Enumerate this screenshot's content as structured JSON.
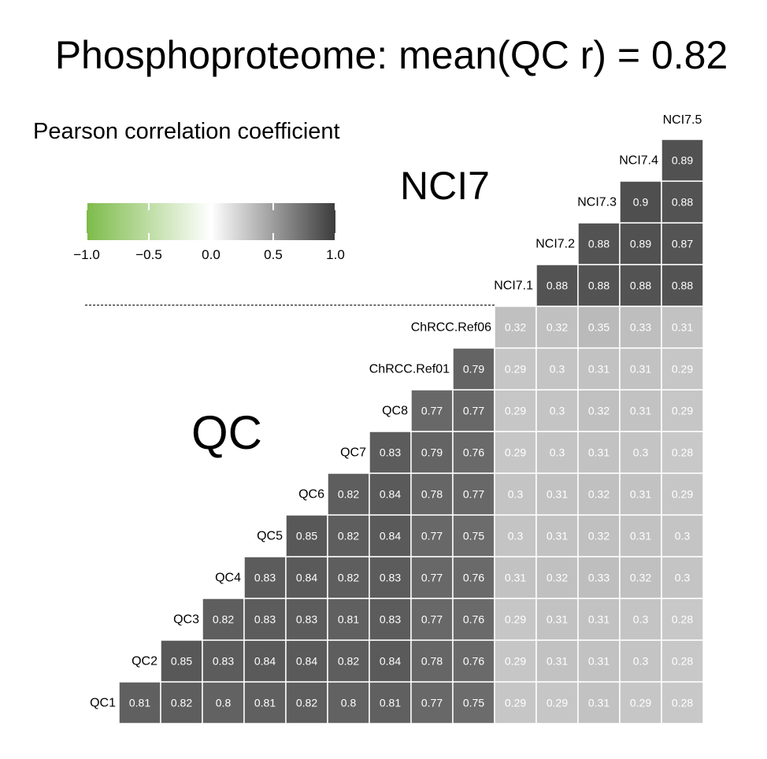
{
  "title": "Phosphoproteome: mean(QC r) = 0.82",
  "legend": {
    "title": "Pearson correlation coefficient",
    "ticks": [
      "−1.0",
      "−0.5",
      "0.0",
      "0.5",
      "1.0"
    ],
    "tick_values": [
      -1.0,
      -0.5,
      0.0,
      0.5,
      1.0
    ],
    "colors": {
      "low": "#7dbb4a",
      "mid": "#ffffff",
      "high": "#3b3b3c"
    }
  },
  "group_labels": {
    "nci7": "NCI7",
    "qc": "QC"
  },
  "chart_data": {
    "type": "heatmap",
    "title": "Phosphoproteome: mean(QC r) = 0.82",
    "row_labels": [
      "QC1",
      "QC2",
      "QC3",
      "QC4",
      "QC5",
      "QC6",
      "QC7",
      "QC8",
      "ChRCC.Ref01",
      "ChRCC.Ref06",
      "NCI7.1",
      "NCI7.2",
      "NCI7.3",
      "NCI7.4",
      "NCI7.5"
    ],
    "column_labels": [
      "QC1",
      "QC2",
      "QC3",
      "QC4",
      "QC5",
      "QC6",
      "QC7",
      "QC8",
      "ChRCC.Ref01",
      "ChRCC.Ref06",
      "NCI7.1",
      "NCI7.2",
      "NCI7.3",
      "NCI7.4",
      "NCI7.5"
    ],
    "cells": [
      [
        "0.81",
        "0.82",
        "0.8",
        "0.81",
        "0.82",
        "0.8",
        "0.81",
        "0.77",
        "0.75",
        "0.29",
        "0.29",
        "0.31",
        "0.29",
        "0.28"
      ],
      [
        "0.85",
        "0.83",
        "0.84",
        "0.84",
        "0.82",
        "0.84",
        "0.78",
        "0.76",
        "0.29",
        "0.31",
        "0.31",
        "0.3",
        "0.28"
      ],
      [
        "0.82",
        "0.83",
        "0.83",
        "0.81",
        "0.83",
        "0.77",
        "0.76",
        "0.29",
        "0.31",
        "0.31",
        "0.3",
        "0.28"
      ],
      [
        "0.83",
        "0.84",
        "0.82",
        "0.83",
        "0.77",
        "0.76",
        "0.31",
        "0.32",
        "0.33",
        "0.32",
        "0.3"
      ],
      [
        "0.85",
        "0.82",
        "0.84",
        "0.77",
        "0.75",
        "0.3",
        "0.31",
        "0.32",
        "0.31",
        "0.3"
      ],
      [
        "0.82",
        "0.84",
        "0.78",
        "0.77",
        "0.3",
        "0.31",
        "0.32",
        "0.31",
        "0.29"
      ],
      [
        "0.83",
        "0.79",
        "0.76",
        "0.29",
        "0.3",
        "0.31",
        "0.3",
        "0.28"
      ],
      [
        "0.77",
        "0.77",
        "0.29",
        "0.3",
        "0.32",
        "0.31",
        "0.29"
      ],
      [
        "0.79",
        "0.29",
        "0.3",
        "0.31",
        "0.31",
        "0.29"
      ],
      [
        "0.32",
        "0.32",
        "0.35",
        "0.33",
        "0.31"
      ],
      [
        "0.88",
        "0.88",
        "0.88",
        "0.88"
      ],
      [
        "0.88",
        "0.89",
        "0.87"
      ],
      [
        "0.9",
        "0.88"
      ],
      [
        "0.89"
      ]
    ],
    "color_scale": {
      "min": -1.0,
      "max": 1.0,
      "colors": [
        "#7dbb4a",
        "#ffffff",
        "#3b3b3c"
      ]
    },
    "legend": "top-left"
  }
}
